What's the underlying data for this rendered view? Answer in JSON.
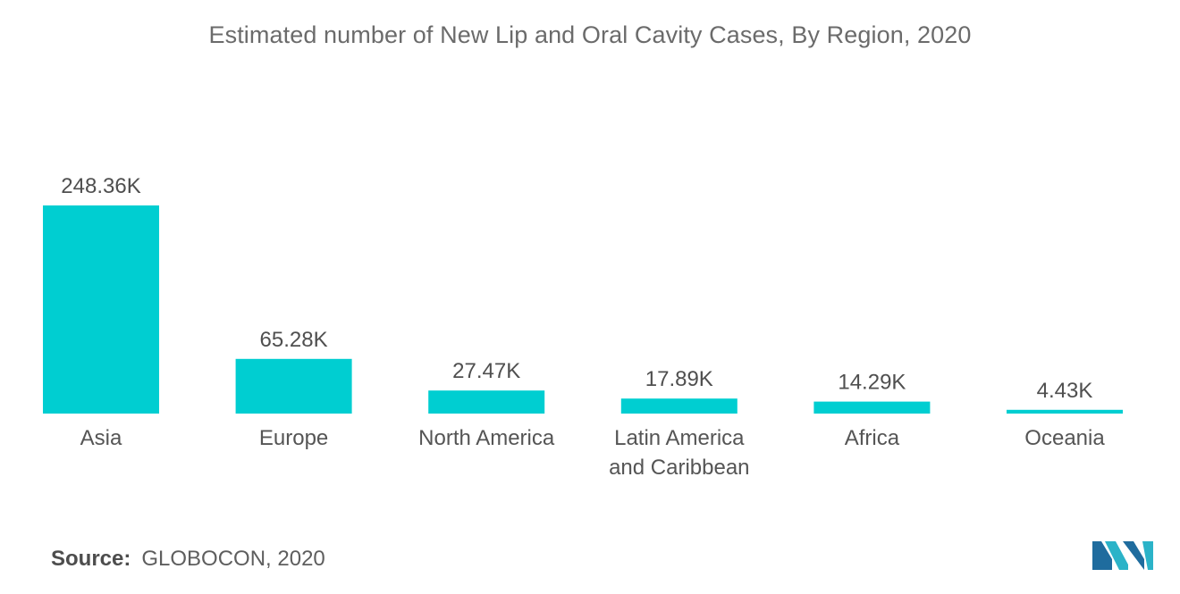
{
  "chart_data": {
    "type": "bar",
    "title": "Estimated number of New Lip and Oral Cavity Cases, By Region, 2020",
    "categories": [
      [
        "Asia"
      ],
      [
        "Europe"
      ],
      [
        "North America"
      ],
      [
        "Latin America",
        "and Caribbean"
      ],
      [
        "Africa"
      ],
      [
        "Oceania"
      ]
    ],
    "values": [
      248.36,
      65.28,
      27.47,
      17.89,
      14.29,
      4.43
    ],
    "value_labels": [
      "248.36K",
      "65.28K",
      "27.47K",
      "17.89K",
      "14.29K",
      "4.43K"
    ],
    "unit": "K",
    "xlabel": "",
    "ylabel": "",
    "ylim": [
      0,
      248.36
    ],
    "grid": false,
    "legend": "none",
    "bar_color": "#00CED1"
  },
  "source": {
    "label": "Source:",
    "text": "GLOBOCON, 2020"
  },
  "brand": {
    "logo_name": "mordor-intelligence-logo",
    "colors": [
      "#1F6C9E",
      "#2BB3C8"
    ]
  }
}
